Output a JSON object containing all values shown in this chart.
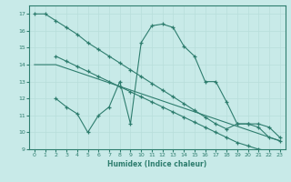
{
  "line1_x": [
    0,
    1,
    2,
    3,
    4,
    5,
    6,
    7,
    8,
    9,
    10,
    11,
    12,
    13,
    14,
    15,
    16,
    17,
    18,
    19,
    20,
    21,
    22,
    23
  ],
  "line1_y": [
    17.0,
    17.0,
    16.6,
    16.2,
    15.8,
    15.3,
    14.9,
    14.5,
    14.1,
    13.7,
    13.3,
    12.9,
    12.5,
    12.1,
    11.7,
    11.3,
    10.9,
    10.5,
    10.2,
    10.5,
    10.5,
    10.3,
    9.7,
    9.5
  ],
  "line2_x": [
    2,
    3,
    4,
    5,
    6,
    7,
    8,
    9,
    10,
    11,
    12,
    13,
    14,
    15,
    16,
    17,
    18,
    19,
    20,
    21,
    22,
    23
  ],
  "line2_y": [
    14.5,
    14.2,
    13.9,
    13.6,
    13.3,
    13.0,
    12.7,
    12.4,
    12.1,
    11.8,
    11.5,
    11.2,
    10.9,
    10.6,
    10.3,
    10.0,
    9.7,
    9.4,
    9.2,
    9.0,
    8.9,
    8.7
  ],
  "line3_x": [
    2,
    3,
    4,
    5,
    6,
    7,
    8,
    9,
    10,
    11,
    12,
    13,
    14,
    15,
    16,
    17,
    18,
    19,
    20,
    21,
    22,
    23
  ],
  "line3_y": [
    12.0,
    11.5,
    11.1,
    10.0,
    11.0,
    11.5,
    13.0,
    10.5,
    15.3,
    16.3,
    16.4,
    16.2,
    15.1,
    14.5,
    13.0,
    13.0,
    11.8,
    10.5,
    10.5,
    10.5,
    10.3,
    9.7
  ],
  "line4_x": [
    0,
    2,
    23
  ],
  "line4_y": [
    14.0,
    14.0,
    9.5
  ],
  "color": "#2e7d6e",
  "bg_color": "#c8eae8",
  "grid_color": "#b8deda",
  "xlabel": "Humidex (Indice chaleur)",
  "ylim": [
    9,
    17.5
  ],
  "xlim": [
    -0.5,
    23.5
  ],
  "yticks": [
    9,
    10,
    11,
    12,
    13,
    14,
    15,
    16,
    17
  ],
  "xticks": [
    0,
    1,
    2,
    3,
    4,
    5,
    6,
    7,
    8,
    9,
    10,
    11,
    12,
    13,
    14,
    15,
    16,
    17,
    18,
    19,
    20,
    21,
    22,
    23
  ]
}
